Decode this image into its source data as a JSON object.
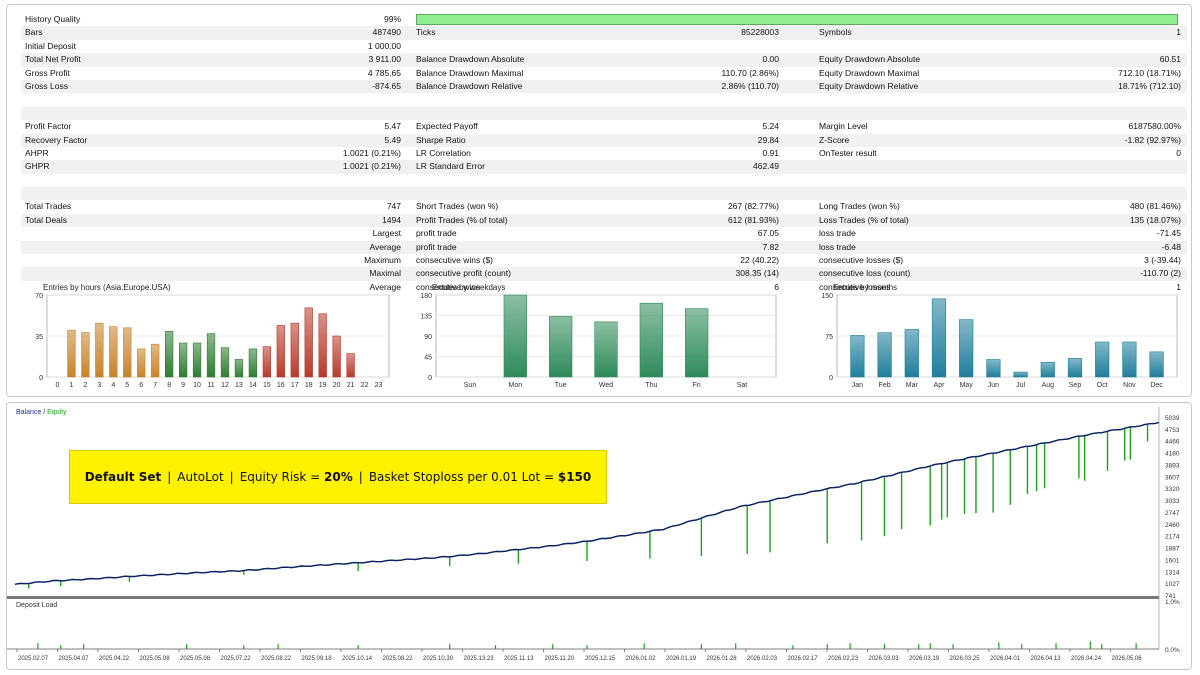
{
  "stats": {
    "history_quality_label": "History Quality",
    "history_quality_value": "99%",
    "history_quality_fraction": 0.99,
    "rows_top": [
      {
        "l1": "Bars",
        "v1": "487490",
        "l2": "Ticks",
        "v2": "85228003",
        "l3": "Symbols",
        "v3": "1"
      },
      {
        "l1": "Initial Deposit",
        "v1": "1 000.00",
        "l2": "",
        "v2": "",
        "l3": "",
        "v3": ""
      },
      {
        "l1": "Total Net Profit",
        "v1": "3 911.00",
        "l2": "Balance Drawdown Absolute",
        "v2": "0.00",
        "l3": "Equity Drawdown Absolute",
        "v3": "60.51"
      },
      {
        "l1": "Gross Profit",
        "v1": "4 785.65",
        "l2": "Balance Drawdown Maximal",
        "v2": "110.70 (2.86%)",
        "l3": "Equity Drawdown Maximal",
        "v3": "712.10 (18.71%)"
      },
      {
        "l1": "Gross Loss",
        "v1": "-874.65",
        "l2": "Balance Drawdown Relative",
        "v2": "2.86% (110.70)",
        "l3": "Equity Drawdown Relative",
        "v3": "18.71% (712.10)"
      }
    ],
    "rows_mid": [
      {
        "l1": "Profit Factor",
        "v1": "5.47",
        "l2": "Expected Payoff",
        "v2": "5.24",
        "l3": "Margin Level",
        "v3": "6187580.00%"
      },
      {
        "l1": "Recovery Factor",
        "v1": "5.49",
        "l2": "Sharpe Ratio",
        "v2": "29.84",
        "l3": "Z-Score",
        "v3": "-1.82 (92.97%)"
      },
      {
        "l1": "AHPR",
        "v1": "1.0021 (0.21%)",
        "l2": "LR Correlation",
        "v2": "0.91",
        "l3": "OnTester result",
        "v3": "0"
      },
      {
        "l1": "GHPR",
        "v1": "1.0021 (0.21%)",
        "l2": "LR Standard Error",
        "v2": "462.49",
        "l3": "",
        "v3": ""
      }
    ],
    "rows_trades": [
      {
        "l1": "Total Trades",
        "v1": "747",
        "l2": "Short Trades (won %)",
        "v2": "267 (82.77%)",
        "l3": "Long Trades (won %)",
        "v3": "480 (81.46%)"
      },
      {
        "l1": "Total Deals",
        "v1": "1494",
        "l2": "Profit Trades (% of total)",
        "v2": "612 (81.93%)",
        "l3": "Loss Trades (% of total)",
        "v3": "135 (18.07%)"
      }
    ],
    "rows_detail": [
      {
        "r": "Largest",
        "l2": "profit trade",
        "v2": "67.05",
        "l3": "loss trade",
        "v3": "-71.45"
      },
      {
        "r": "Average",
        "l2": "profit trade",
        "v2": "7.82",
        "l3": "loss trade",
        "v3": "-6.48"
      },
      {
        "r": "Maximum",
        "l2": "consecutive wins ($)",
        "v2": "22 (40.22)",
        "l3": "consecutive losses ($)",
        "v3": "3 (-39.44)"
      },
      {
        "r": "Maximal",
        "l2": "consecutive profit (count)",
        "v2": "308.35 (14)",
        "l3": "consecutive loss (count)",
        "v3": "-110.70 (2)"
      },
      {
        "r": "Average",
        "l2": "consecutive wins",
        "v2": "6",
        "l3": "consecutive losses",
        "v3": "1"
      }
    ]
  },
  "chart_data": [
    {
      "type": "bar",
      "title": "Entries by hours (Asia.Europe.USA)",
      "categories": [
        "0",
        "1",
        "2",
        "3",
        "4",
        "5",
        "6",
        "7",
        "8",
        "9",
        "10",
        "11",
        "12",
        "13",
        "14",
        "15",
        "16",
        "17",
        "18",
        "19",
        "20",
        "21",
        "22",
        "23"
      ],
      "values": [
        0,
        40,
        38,
        46,
        43,
        42,
        24,
        28,
        39,
        29,
        29,
        37,
        25,
        15,
        24,
        26,
        44,
        46,
        59,
        54,
        35,
        20,
        0,
        0
      ],
      "ylim": [
        0,
        70
      ],
      "yticks": [
        "0",
        "35",
        "70"
      ],
      "colors": [
        "#c8832a",
        "#c8832a",
        "#c8832a",
        "#c8832a",
        "#c8832a",
        "#c8832a",
        "#c8832a",
        "#c8832a",
        "#2f7d32",
        "#2f7d32",
        "#2f7d32",
        "#2f7d32",
        "#2f7d32",
        "#2f7d32",
        "#2f7d32",
        "#b83a2b",
        "#b83a2b",
        "#b83a2b",
        "#b83a2b",
        "#b83a2b",
        "#b83a2b",
        "#b83a2b",
        "#b83a2b",
        "#b83a2b"
      ]
    },
    {
      "type": "bar",
      "title": "Entries by weekdays",
      "categories": [
        "Sun",
        "Mon",
        "Tue",
        "Wed",
        "Thu",
        "Fri",
        "Sat"
      ],
      "values": [
        0,
        180,
        133,
        121,
        162,
        150,
        0
      ],
      "ylim": [
        0,
        180
      ],
      "yticks": [
        "0",
        "45",
        "90",
        "135",
        "180"
      ],
      "colors": [
        "#2e8b5a",
        "#2e8b5a",
        "#2e8b5a",
        "#2e8b5a",
        "#2e8b5a",
        "#2e8b5a",
        "#2e8b5a"
      ]
    },
    {
      "type": "bar",
      "title": "Entries by months",
      "categories": [
        "Jan",
        "Feb",
        "Mar",
        "Apr",
        "May",
        "Jun",
        "Jul",
        "Aug",
        "Sep",
        "Oct",
        "Nov",
        "Dec"
      ],
      "values": [
        76,
        81,
        87,
        143,
        105,
        32,
        9,
        27,
        34,
        64,
        64,
        46
      ],
      "ylim": [
        0,
        150
      ],
      "yticks": [
        "0",
        "75",
        "150"
      ],
      "colors": [
        "#1f7e9c",
        "#1f7e9c",
        "#1f7e9c",
        "#1f7e9c",
        "#1f7e9c",
        "#1f7e9c",
        "#1f7e9c",
        "#1f7e9c",
        "#1f7e9c",
        "#1f7e9c",
        "#1f7e9c",
        "#1f7e9c"
      ]
    },
    {
      "type": "line",
      "title": "",
      "legend": [
        "Balance",
        "Equity"
      ],
      "series": [
        {
          "name": "Balance",
          "color": "#0b1f6b",
          "values": [
            1000,
            1080,
            1130,
            1190,
            1240,
            1290,
            1330,
            1400,
            1460,
            1520,
            1580,
            1640,
            1720,
            1820,
            1920,
            2040,
            2180,
            2330,
            2600,
            2870,
            3060,
            3250,
            3430,
            3640,
            3860,
            4050,
            4230,
            4410,
            4590,
            4750,
            4911
          ]
        },
        {
          "name": "Equity",
          "color": "#1aa31a",
          "dips": [
            [
              0.012,
              900
            ],
            [
              0.04,
              950
            ],
            [
              0.1,
              1060
            ],
            [
              0.2,
              1230
            ],
            [
              0.3,
              1320
            ],
            [
              0.38,
              1440
            ],
            [
              0.44,
              1500
            ],
            [
              0.5,
              1560
            ],
            [
              0.555,
              1620
            ],
            [
              0.6,
              1680
            ],
            [
              0.64,
              1730
            ],
            [
              0.66,
              1770
            ],
            [
              0.71,
              1990
            ],
            [
              0.74,
              2060
            ],
            [
              0.76,
              2160
            ],
            [
              0.775,
              2330
            ],
            [
              0.8,
              2420
            ],
            [
              0.81,
              2560
            ],
            [
              0.815,
              2620
            ],
            [
              0.83,
              2700
            ],
            [
              0.84,
              2720
            ],
            [
              0.855,
              2730
            ],
            [
              0.87,
              2920
            ],
            [
              0.885,
              3180
            ],
            [
              0.893,
              3250
            ],
            [
              0.9,
              3320
            ],
            [
              0.93,
              3560
            ],
            [
              0.935,
              3500
            ],
            [
              0.955,
              3740
            ],
            [
              0.97,
              3990
            ],
            [
              0.975,
              4010
            ],
            [
              0.99,
              4450
            ]
          ]
        }
      ],
      "yticks": [
        "5039",
        "4753",
        "4466",
        "4180",
        "3893",
        "3607",
        "3320",
        "3033",
        "2747",
        "2460",
        "2174",
        "1887",
        "1601",
        "1314",
        "1027",
        "741"
      ],
      "ylim": [
        741,
        5039
      ],
      "xticks": [
        "2025.02.07",
        "2025.04.07",
        "2025.04.22",
        "2025.05.08",
        "2025.05.08",
        "2025.07.22",
        "2025.08.22",
        "2025.09.18",
        "2025.10.14",
        "2025.08.22",
        "2025.10.30",
        "2025.13.23",
        "2025.11.13",
        "2025.11.20",
        "2025.12.15",
        "2026.01.02",
        "2026.01.19",
        "2026.01.28",
        "2026.02.03",
        "2026.02.17",
        "2026.02.23",
        "2026.03.03",
        "2026.03.19",
        "2026.03.25",
        "2026.04.01",
        "2026.04.13",
        "2026.04.24",
        "2026.05.06"
      ]
    },
    {
      "type": "bar",
      "title": "Deposit Load",
      "yticks": [
        "1.0%",
        "0.0%"
      ],
      "ylim": [
        0,
        1
      ],
      "spikes": [
        0.02,
        0.04,
        0.06,
        0.15,
        0.2,
        0.23,
        0.3,
        0.38,
        0.42,
        0.47,
        0.5,
        0.55,
        0.6,
        0.63,
        0.68,
        0.71,
        0.73,
        0.76,
        0.79,
        0.8,
        0.82,
        0.86,
        0.88,
        0.91,
        0.94,
        0.95,
        0.98
      ],
      "spike_values": [
        0.12,
        0.08,
        0.1,
        0.1,
        0.08,
        0.1,
        0.08,
        0.1,
        0.08,
        0.1,
        0.08,
        0.12,
        0.1,
        0.12,
        0.08,
        0.1,
        0.12,
        0.1,
        0.1,
        0.12,
        0.1,
        0.14,
        0.1,
        0.12,
        0.16,
        0.1,
        0.12
      ]
    }
  ],
  "equity_panel": {
    "legend_balance": "Balance",
    "legend_slash": " / ",
    "legend_equity": "Equity",
    "deposit_load_label": "Deposit Load"
  },
  "banner": {
    "part1": "Default Set",
    "sep": "|",
    "part2": "AutoLot",
    "part3_prefix": "Equity Risk = ",
    "part3_value": "20%",
    "part4_prefix": "Basket Stoploss per 0.01 Lot = ",
    "part4_value": "$150"
  }
}
